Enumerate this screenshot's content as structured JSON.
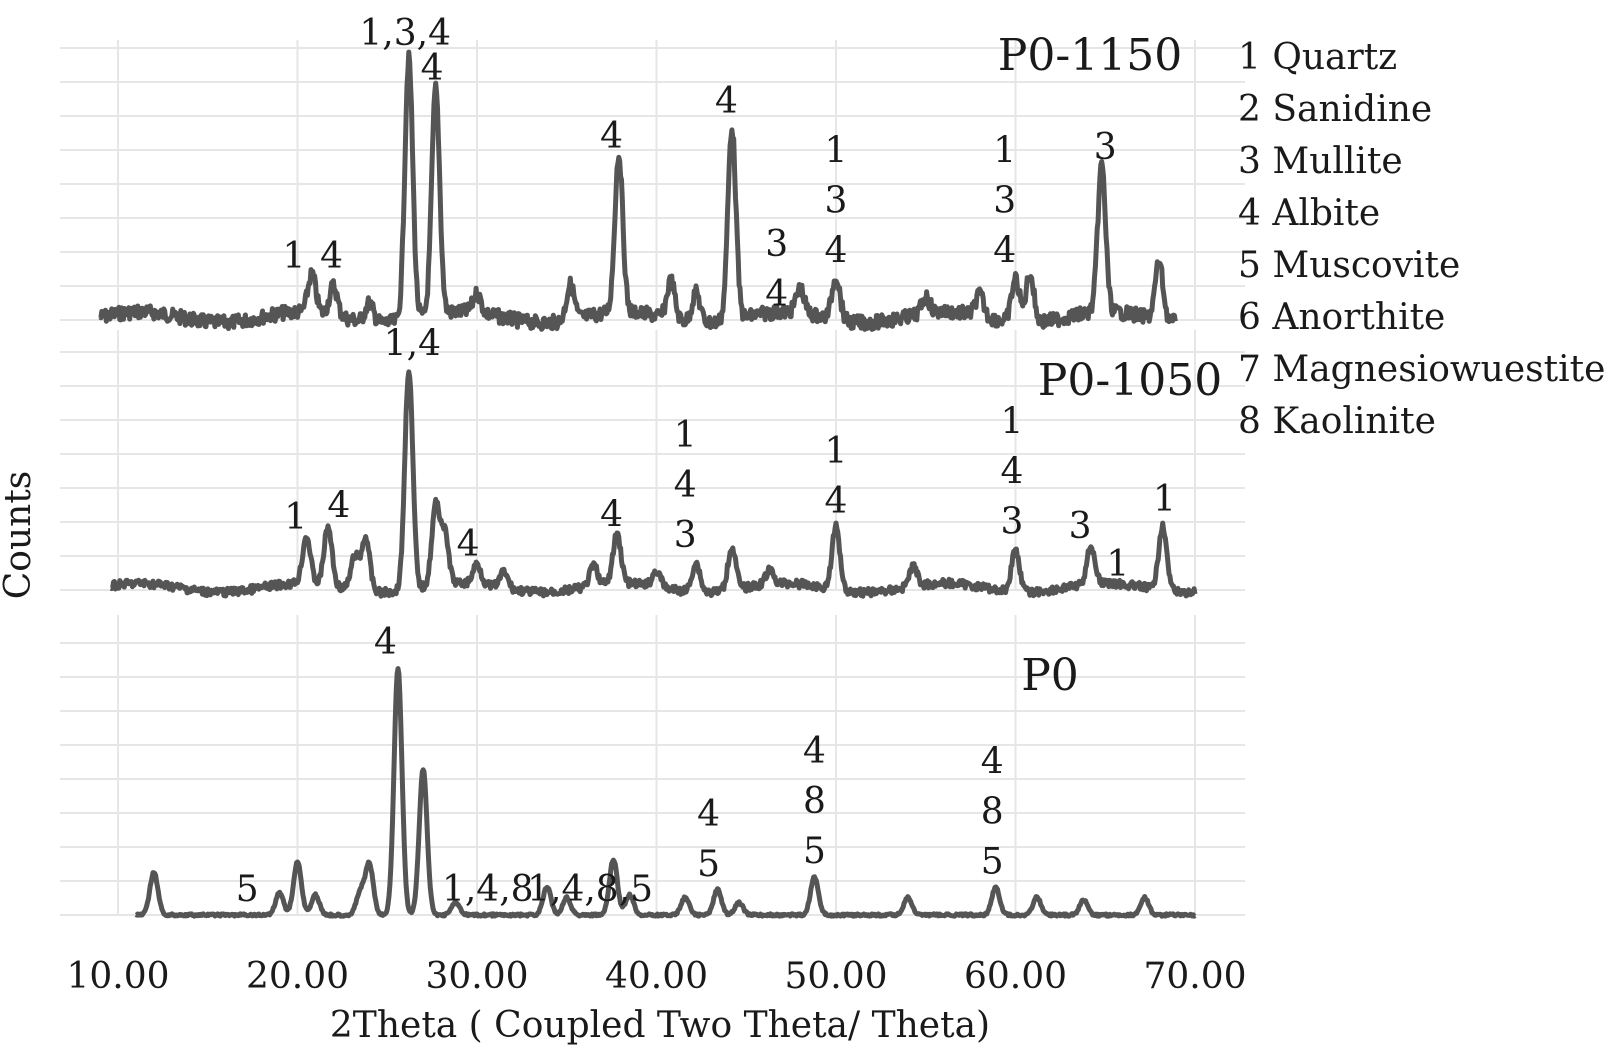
{
  "chart_data": {
    "type": "line",
    "title": "",
    "xlabel": "2Theta ( Coupled Two Theta/ Theta)",
    "ylabel": "Counts",
    "xlim": [
      10,
      70
    ],
    "x_ticks": [
      "10.00",
      "20.00",
      "30.00",
      "40.00",
      "50.00",
      "60.00",
      "70.00"
    ],
    "grid": true,
    "stacked": true,
    "legend_position": "top-right",
    "legend": [
      "1 Quartz",
      "2 Sanidine",
      "3 Mullite",
      "4 Albite",
      "5 Muscovite",
      "6 Anorthite",
      "7 Magnesiowuestite",
      "8 Kaolinite"
    ],
    "series": [
      {
        "name": "P0-1150",
        "peaks": [
          {
            "x": 20.8,
            "h": 0.14
          },
          {
            "x": 22.0,
            "h": 0.11
          },
          {
            "x": 24.0,
            "h": 0.07
          },
          {
            "x": 26.2,
            "h": 0.96
          },
          {
            "x": 27.7,
            "h": 0.83
          },
          {
            "x": 30.0,
            "h": 0.07
          },
          {
            "x": 35.2,
            "h": 0.13
          },
          {
            "x": 37.9,
            "h": 0.58
          },
          {
            "x": 40.8,
            "h": 0.14
          },
          {
            "x": 42.2,
            "h": 0.11
          },
          {
            "x": 44.2,
            "h": 0.71
          },
          {
            "x": 48.0,
            "h": 0.09
          },
          {
            "x": 50.0,
            "h": 0.16
          },
          {
            "x": 55.0,
            "h": 0.06
          },
          {
            "x": 58.0,
            "h": 0.08
          },
          {
            "x": 60.0,
            "h": 0.16
          },
          {
            "x": 60.8,
            "h": 0.18
          },
          {
            "x": 64.8,
            "h": 0.54
          },
          {
            "x": 68.0,
            "h": 0.21
          }
        ],
        "peak_labels": [
          {
            "x": 19.8,
            "lines": [
              "1"
            ]
          },
          {
            "x": 21.9,
            "lines": [
              "4"
            ]
          },
          {
            "x": 26.0,
            "lines": [
              "1,3,4"
            ]
          },
          {
            "x": 27.5,
            "lines": [
              "4"
            ]
          },
          {
            "x": 37.5,
            "lines": [
              "4"
            ]
          },
          {
            "x": 43.9,
            "lines": [
              "4"
            ]
          },
          {
            "x": 46.7,
            "lines": [
              "3",
              "4"
            ]
          },
          {
            "x": 50.0,
            "lines": [
              "1",
              "3",
              "4"
            ]
          },
          {
            "x": 59.4,
            "lines": [
              "1",
              "3",
              "4"
            ]
          },
          {
            "x": 65.0,
            "lines": [
              "3"
            ]
          }
        ]
      },
      {
        "name": "P0-1050",
        "peaks": [
          {
            "x": 20.5,
            "h": 0.21
          },
          {
            "x": 21.7,
            "h": 0.26
          },
          {
            "x": 23.2,
            "h": 0.15
          },
          {
            "x": 23.8,
            "h": 0.24
          },
          {
            "x": 26.2,
            "h": 0.98
          },
          {
            "x": 27.7,
            "h": 0.35
          },
          {
            "x": 28.2,
            "h": 0.22
          },
          {
            "x": 30.0,
            "h": 0.09
          },
          {
            "x": 31.5,
            "h": 0.07
          },
          {
            "x": 36.5,
            "h": 0.09
          },
          {
            "x": 37.8,
            "h": 0.22
          },
          {
            "x": 40.0,
            "h": 0.07
          },
          {
            "x": 42.2,
            "h": 0.13
          },
          {
            "x": 44.2,
            "h": 0.19
          },
          {
            "x": 46.3,
            "h": 0.06
          },
          {
            "x": 50.0,
            "h": 0.28
          },
          {
            "x": 54.3,
            "h": 0.09
          },
          {
            "x": 60.0,
            "h": 0.19
          },
          {
            "x": 64.2,
            "h": 0.17
          },
          {
            "x": 68.2,
            "h": 0.29
          }
        ],
        "peak_labels": [
          {
            "x": 19.9,
            "lines": [
              "1"
            ]
          },
          {
            "x": 22.3,
            "lines": [
              "4"
            ]
          },
          {
            "x": 26.4,
            "lines": [
              "1,4"
            ]
          },
          {
            "x": 29.5,
            "lines": [
              "4"
            ]
          },
          {
            "x": 37.5,
            "lines": [
              "4"
            ]
          },
          {
            "x": 41.6,
            "lines": [
              "1",
              "4",
              "3"
            ]
          },
          {
            "x": 50.0,
            "lines": [
              "1",
              "4"
            ]
          },
          {
            "x": 59.8,
            "lines": [
              "1",
              "4",
              "3"
            ]
          },
          {
            "x": 63.6,
            "lines": [
              "3"
            ]
          },
          {
            "x": 65.7,
            "lines": [
              "1"
            ]
          },
          {
            "x": 68.3,
            "lines": [
              "1"
            ]
          }
        ]
      },
      {
        "name": "P0",
        "peaks": [
          {
            "x": 12.0,
            "h": 0.17
          },
          {
            "x": 19.0,
            "h": 0.09
          },
          {
            "x": 20.0,
            "h": 0.21
          },
          {
            "x": 21.0,
            "h": 0.08
          },
          {
            "x": 23.5,
            "h": 0.09
          },
          {
            "x": 24.0,
            "h": 0.2
          },
          {
            "x": 25.6,
            "h": 0.98
          },
          {
            "x": 27.0,
            "h": 0.58
          },
          {
            "x": 28.8,
            "h": 0.05
          },
          {
            "x": 33.9,
            "h": 0.11
          },
          {
            "x": 35.0,
            "h": 0.07
          },
          {
            "x": 37.6,
            "h": 0.22
          },
          {
            "x": 38.5,
            "h": 0.08
          },
          {
            "x": 41.6,
            "h": 0.07
          },
          {
            "x": 43.4,
            "h": 0.1
          },
          {
            "x": 44.6,
            "h": 0.05
          },
          {
            "x": 48.8,
            "h": 0.15
          },
          {
            "x": 54.0,
            "h": 0.07
          },
          {
            "x": 58.9,
            "h": 0.11
          },
          {
            "x": 61.2,
            "h": 0.07
          },
          {
            "x": 63.8,
            "h": 0.06
          },
          {
            "x": 67.2,
            "h": 0.07
          }
        ],
        "peak_labels": [
          {
            "x": 17.2,
            "lines": [
              "5"
            ]
          },
          {
            "x": 24.9,
            "lines": [
              "4"
            ]
          },
          {
            "x": 30.6,
            "lines": [
              "1,4,8"
            ]
          },
          {
            "x": 36.3,
            "lines": [
              "1,4,8,5"
            ]
          },
          {
            "x": 42.9,
            "lines": [
              "4",
              "5"
            ]
          },
          {
            "x": 48.8,
            "lines": [
              "4",
              "8",
              "5"
            ]
          },
          {
            "x": 58.7,
            "lines": [
              "4",
              "8",
              "5"
            ]
          }
        ]
      }
    ]
  }
}
